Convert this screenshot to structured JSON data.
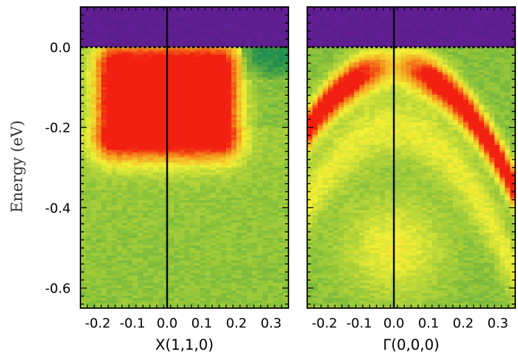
{
  "chart_data": [
    {
      "type": "heatmap",
      "title": "",
      "xlabel": "X(1,1,0)",
      "ylabel": "Energy (eV)",
      "xlim": [
        -0.25,
        0.35
      ],
      "ylim": [
        -0.65,
        0.1
      ],
      "x_ticks": [
        -0.2,
        -0.1,
        0.0,
        0.1,
        0.2,
        0.3
      ],
      "x_tick_labels": [
        "-0.2",
        "-0.1",
        "0.0",
        "0.1",
        "0.2",
        "0.3"
      ],
      "y_ticks": [
        0.0,
        -0.2,
        -0.4,
        -0.6
      ],
      "y_tick_labels": [
        "0.0",
        "-0.2",
        "-0.4",
        "-0.6"
      ],
      "fermi_level": 0.0,
      "vertical_line_at": 0.0,
      "colormap": [
        "#5a1e8c",
        "#1e7fa6",
        "#1f8f4e",
        "#8fc43a",
        "#f2f036",
        "#f59b1e",
        "#f22010"
      ],
      "intensity_features": [
        {
          "shape": "flat-band",
          "x_range": [
            -0.15,
            0.15
          ],
          "energy_range": [
            -0.05,
            -0.22
          ],
          "peak_intensity": 1.0
        },
        {
          "shape": "background",
          "energy_range": [
            -0.2,
            -0.65
          ],
          "peak_intensity": 0.35
        }
      ]
    },
    {
      "type": "heatmap",
      "title": "",
      "xlabel": "Γ(0,0,0)",
      "ylabel": "",
      "xlim": [
        -0.25,
        0.35
      ],
      "ylim": [
        -0.65,
        0.1
      ],
      "x_ticks": [
        -0.2,
        -0.1,
        0.0,
        0.1,
        0.2,
        0.3
      ],
      "x_tick_labels": [
        "-0.2",
        "-0.1",
        "0.0",
        "0.1",
        "0.2",
        "0.3"
      ],
      "y_ticks": [
        0.0,
        -0.2,
        -0.4,
        -0.6
      ],
      "fermi_level": 0.0,
      "vertical_line_at": 0.0,
      "colormap": [
        "#5a1e8c",
        "#1e7fa6",
        "#1f8f4e",
        "#8fc43a",
        "#f2f036",
        "#f59b1e",
        "#f22010"
      ],
      "intensity_features": [
        {
          "shape": "hole-band",
          "apex_energy": -0.05,
          "curvature": -2.5,
          "peak_intensity": 1.0
        },
        {
          "shape": "inner-band",
          "apex_energy": -0.2,
          "curvature": -3.0,
          "peak_intensity": 0.55
        },
        {
          "shape": "blob",
          "center": [
            0.0,
            -0.5
          ],
          "peak_intensity": 0.6
        }
      ]
    }
  ]
}
